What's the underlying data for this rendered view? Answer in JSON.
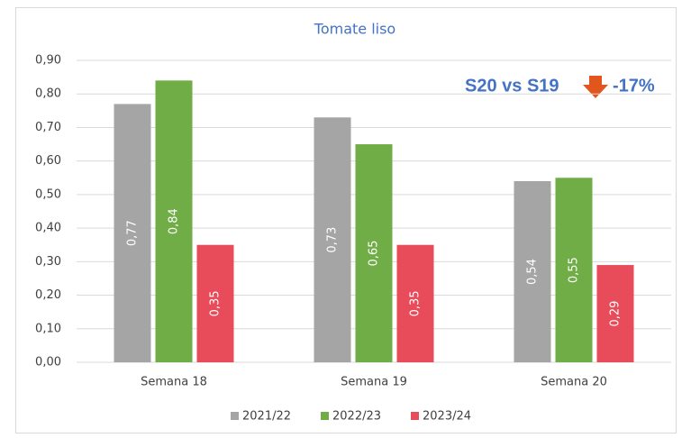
{
  "chart_data": {
    "type": "bar",
    "title": "Tomate liso",
    "categories": [
      "Semana 18",
      "Semana 19",
      "Semana 20"
    ],
    "series": [
      {
        "name": "2021/22",
        "color": "#a5a5a5",
        "values": [
          0.77,
          0.73,
          0.54
        ],
        "value_labels": [
          "0,77",
          "0,73",
          "0,54"
        ]
      },
      {
        "name": "2022/23",
        "color": "#70ad47",
        "values": [
          0.84,
          0.65,
          0.55
        ],
        "value_labels": [
          "0,84",
          "0,65",
          "0,55"
        ]
      },
      {
        "name": "2023/24",
        "color": "#e84c5a",
        "values": [
          0.35,
          0.35,
          0.29
        ],
        "value_labels": [
          "0,35",
          "0,35",
          "0,29"
        ]
      }
    ],
    "ylim": [
      0,
      0.9
    ],
    "yticks": [
      {
        "value": 0,
        "label": "0,00"
      },
      {
        "value": 0.1,
        "label": "0,10"
      },
      {
        "value": 0.2,
        "label": "0,20"
      },
      {
        "value": 0.3,
        "label": "0,30"
      },
      {
        "value": 0.4,
        "label": "0,40"
      },
      {
        "value": 0.5,
        "label": "0,50"
      },
      {
        "value": 0.6,
        "label": "0,60"
      },
      {
        "value": 0.7,
        "label": "0,70"
      },
      {
        "value": 0.8,
        "label": "0,80"
      },
      {
        "value": 0.9,
        "label": "0,90"
      }
    ],
    "grid": true,
    "legend": "bottom",
    "annotation": {
      "text": "S20 vs S19",
      "change": "-17%"
    }
  }
}
